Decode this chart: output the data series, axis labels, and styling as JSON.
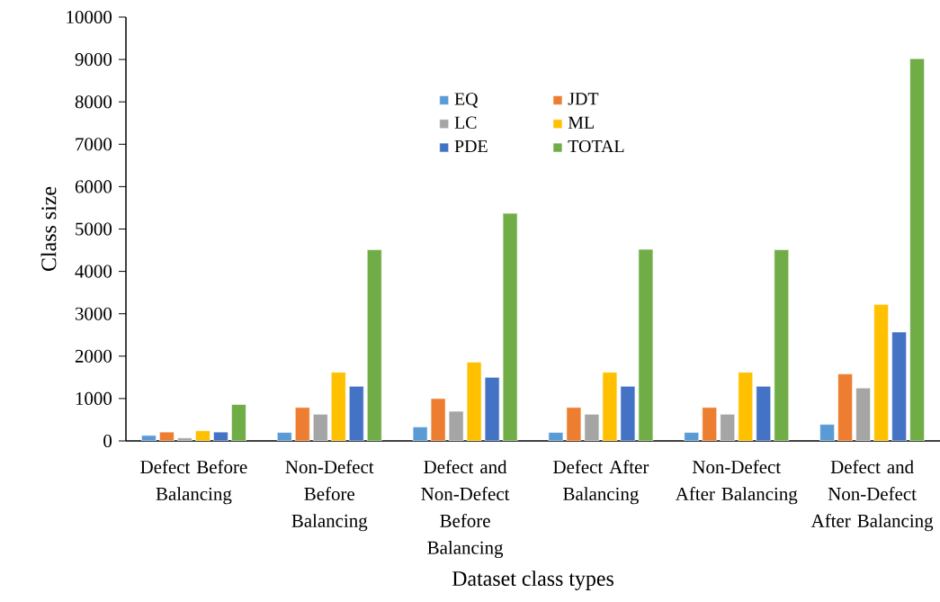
{
  "chart_data": {
    "type": "bar",
    "xlabel": "Dataset class types",
    "ylabel": "Class size",
    "categories": [
      "Defect Before Balancing",
      "Non-Defect Before Balancing",
      "Defect and Non-Defect Before Balancing",
      "Defect After Balancing",
      "Non-Defect After Balancing",
      "Defect and Non-Defect After Balancing"
    ],
    "series": [
      {
        "name": "EQ",
        "color": "#5b9bd5",
        "values": [
          130,
          200,
          330,
          200,
          200,
          390
        ]
      },
      {
        "name": "JDT",
        "color": "#ed7d31",
        "values": [
          210,
          790,
          1000,
          790,
          790,
          1580
        ]
      },
      {
        "name": "LC",
        "color": "#a5a5a5",
        "values": [
          70,
          630,
          700,
          630,
          630,
          1250
        ]
      },
      {
        "name": "ML",
        "color": "#ffc000",
        "values": [
          240,
          1620,
          1860,
          1620,
          1620,
          3220
        ]
      },
      {
        "name": "PDE",
        "color": "#4472c4",
        "values": [
          210,
          1290,
          1500,
          1290,
          1290,
          2570
        ]
      },
      {
        "name": "TOTAL",
        "color": "#70ad47",
        "values": [
          860,
          4510,
          5370,
          4520,
          4510,
          9020
        ]
      }
    ],
    "ylim": [
      0,
      10000
    ],
    "yticks": [
      0,
      1000,
      2000,
      3000,
      4000,
      5000,
      6000,
      7000,
      8000,
      9000,
      10000
    ],
    "grid": false,
    "legend": "top"
  }
}
